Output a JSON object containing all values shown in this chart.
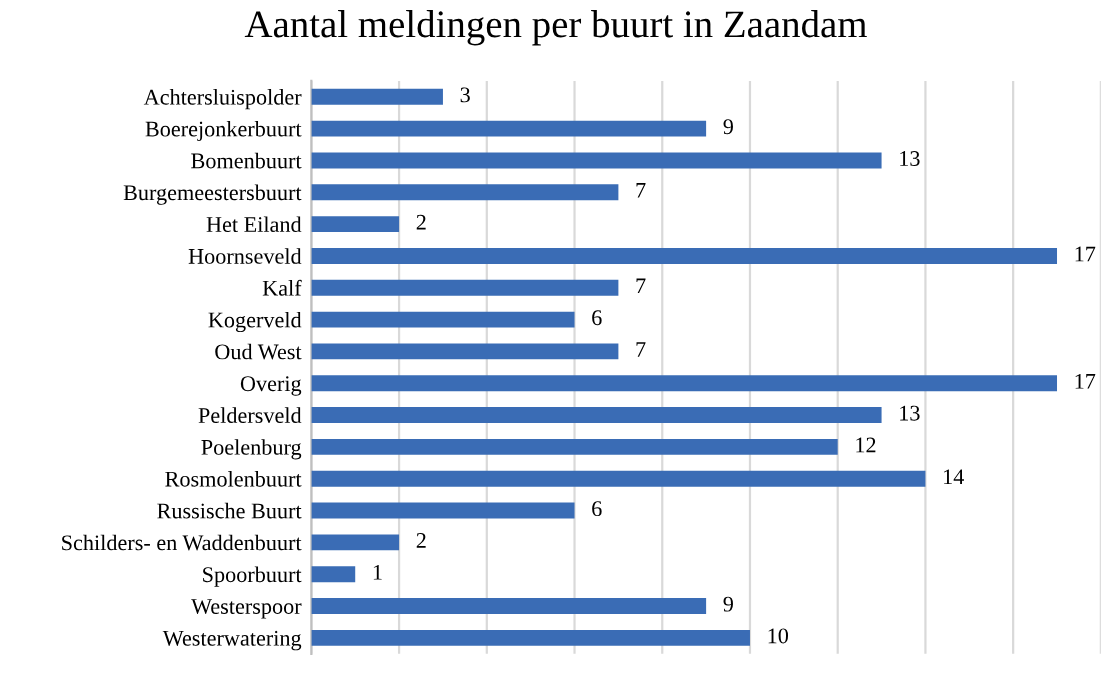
{
  "chart_data": {
    "type": "bar",
    "orientation": "horizontal",
    "title": "Aantal meldingen per buurt in Zaandam",
    "categories": [
      "Achtersluispolder",
      "Boerejonkerbuurt",
      "Bomenbuurt",
      "Burgemeestersbuurt",
      "Het Eiland",
      "Hoornseveld",
      "Kalf",
      "Kogerveld",
      "Oud West",
      "Overig",
      "Peldersveld",
      "Poelenburg",
      "Rosmolenbuurt",
      "Russische Buurt",
      "Schilders- en Waddenbuurt",
      "Spoorbuurt",
      "Westerspoor",
      "Westerwatering"
    ],
    "values": [
      3,
      9,
      13,
      7,
      2,
      17,
      7,
      6,
      7,
      17,
      13,
      12,
      14,
      6,
      2,
      1,
      9,
      10
    ],
    "color": "#3a6cb5",
    "xlim": [
      0,
      18
    ],
    "xticks": [
      {
        "value": 0,
        "label": null
      },
      {
        "value": 2,
        "label": null
      },
      {
        "value": 4,
        "label": null
      },
      {
        "value": 6,
        "label": null
      },
      {
        "value": 8,
        "label": null
      },
      {
        "value": 10,
        "label": null
      },
      {
        "value": 12,
        "label": null
      },
      {
        "value": 14,
        "label": null
      },
      {
        "value": 16,
        "label": null
      },
      {
        "value": 18,
        "label": null
      }
    ],
    "tick_labels": "y",
    "grid": "x",
    "data_labels": true,
    "legend": false
  }
}
